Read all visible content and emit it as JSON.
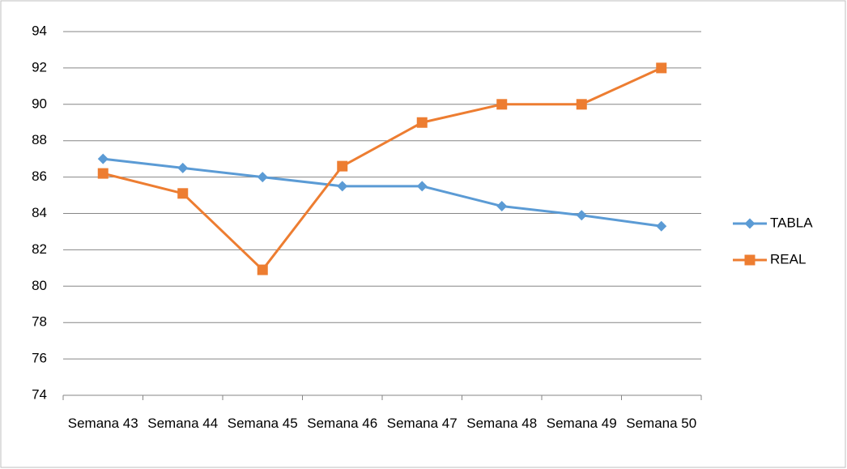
{
  "chart_data": {
    "type": "line",
    "categories": [
      "Semana 43",
      "Semana 44",
      "Semana 45",
      "Semana 46",
      "Semana 47",
      "Semana 48",
      "Semana 49",
      "Semana 50"
    ],
    "series": [
      {
        "name": "TABLA",
        "color": "#5b9bd5",
        "marker": "diamond",
        "values": [
          87,
          86.5,
          86,
          85.5,
          85.5,
          84.4,
          83.9,
          83.3
        ]
      },
      {
        "name": "REAL",
        "color": "#ed7d31",
        "marker": "square",
        "values": [
          86.2,
          85.1,
          80.9,
          86.6,
          89,
          90,
          90,
          92
        ]
      }
    ],
    "ylim": [
      74,
      94
    ],
    "yticks": [
      74,
      76,
      78,
      80,
      82,
      84,
      86,
      88,
      90,
      92,
      94
    ],
    "grid": true,
    "legend": "right"
  }
}
